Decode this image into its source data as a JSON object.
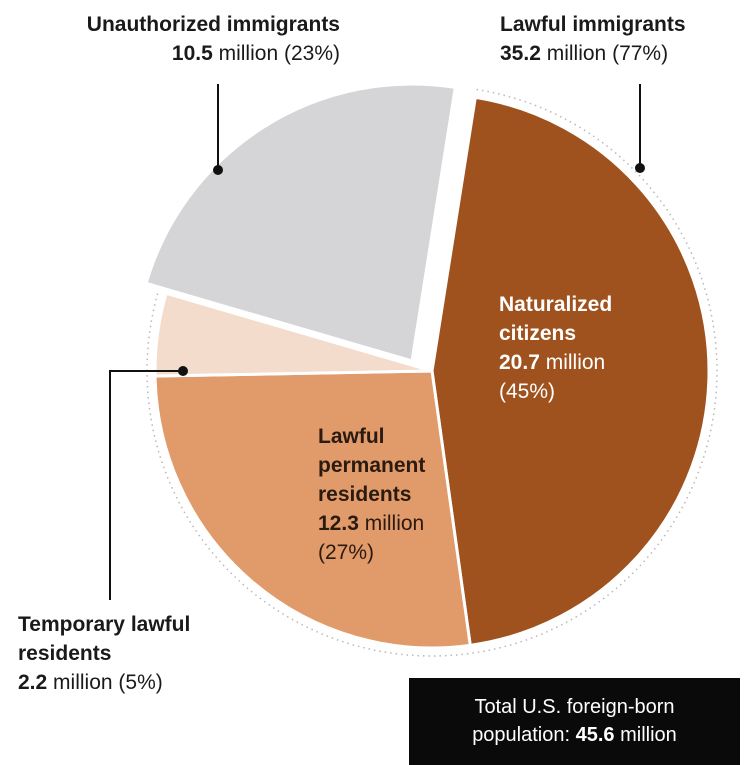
{
  "chart_data": {
    "type": "pie",
    "total_line1": "Total U.S. foreign-born",
    "total_line2_prefix": "population:",
    "total_value": "45.6",
    "total_unit": "million",
    "groups": [
      {
        "name_line1": "Unauthorized immigrants",
        "value_text": "10.5",
        "unit": "million",
        "pct_text": "(23%)",
        "value": 10.5,
        "percent": 23
      },
      {
        "name_line1": "Lawful immigrants",
        "value_text": "35.2",
        "unit": "million",
        "pct_text": "(77%)",
        "value": 35.2,
        "percent": 77
      }
    ],
    "slices": [
      {
        "name_line1": "Naturalized",
        "name_line2": "citizens",
        "value_text": "20.7",
        "unit": "million",
        "pct_text": "(45%)",
        "value": 20.7,
        "percent": 45,
        "color": "#a0521e"
      },
      {
        "name_line1": "Lawful",
        "name_line2": "permanent",
        "name_line3": "residents",
        "value_text": "12.3",
        "unit": "million",
        "pct_text": "(27%)",
        "value": 12.3,
        "percent": 27,
        "color": "#e19a69"
      },
      {
        "name_line1": "Temporary lawful",
        "name_line2": "residents",
        "value_text": "2.2",
        "unit": "million",
        "pct_text": "(5%)",
        "value": 2.2,
        "percent": 5,
        "color": "#f3dccb"
      },
      {
        "value": 10.5,
        "percent": 23,
        "color": "#d5d5d7"
      }
    ],
    "guide_color": "#b8b8b8",
    "callout_color": "#111111"
  }
}
